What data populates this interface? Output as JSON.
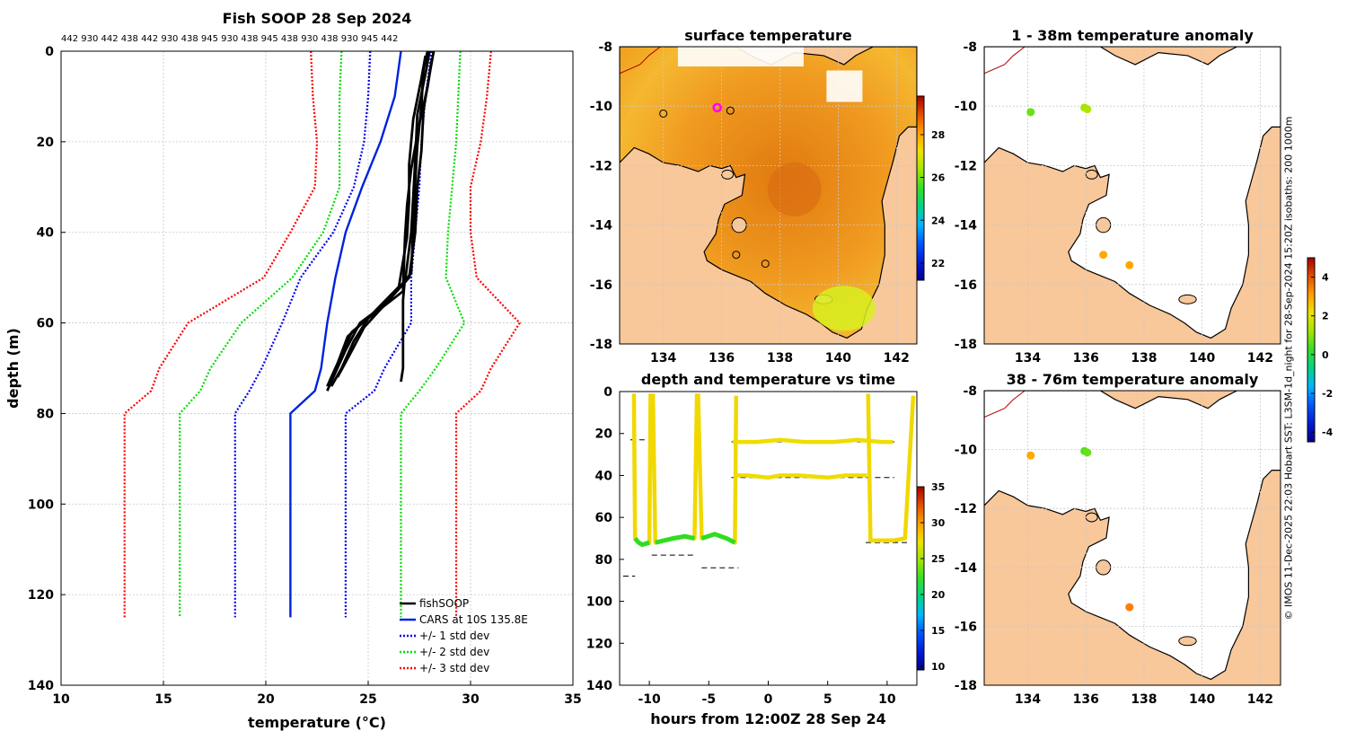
{
  "footer_vertical": "© IMOS 11-Dec-2025 22:03 Hobart SST: L3SM-1d_night for 28-Sep-2024 15:20Z isobaths: 200  1000m",
  "chart_data": [
    {
      "id": "profile",
      "type": "line",
      "title": "Fish SOOP 28 Sep 2024",
      "xlabel": "temperature (°C)",
      "ylabel": "depth (m)",
      "xlim": [
        10,
        35
      ],
      "ylim": [
        0,
        140
      ],
      "y_reversed": true,
      "xticks": [
        10,
        15,
        20,
        25,
        30,
        35
      ],
      "yticks": [
        0,
        20,
        40,
        60,
        80,
        100,
        120,
        140
      ],
      "top_label": "442 930 442 438 442 930 438 945 930 438 945 438 930 438 930 945 442",
      "grid": true,
      "legend_position": "bottom-right",
      "legend": [
        "fishSOOP",
        "CARS at 10S 135.8E",
        "+/- 1 std dev",
        "+/- 2 std dev",
        "+/- 3 std dev"
      ],
      "cars_mean": {
        "depth": [
          0,
          10,
          20,
          30,
          40,
          50,
          60,
          70,
          75,
          80,
          90,
          100,
          110,
          120,
          125
        ],
        "temp": [
          26.6,
          26.3,
          25.6,
          24.7,
          23.9,
          23.4,
          23.0,
          22.7,
          22.4,
          21.2,
          21.2,
          21.2,
          21.2,
          21.2,
          21.2
        ]
      },
      "std_dev_1": {
        "lower": [
          25.1,
          25.0,
          24.8,
          24.3,
          23.3,
          21.7,
          20.8,
          19.8,
          19.2,
          18.5,
          18.5,
          18.5,
          18.5,
          18.5,
          18.5
        ],
        "upper": [
          28.1,
          27.8,
          27.6,
          27.5,
          27.3,
          27.1,
          27.1,
          25.8,
          25.3,
          23.9,
          23.9,
          23.9,
          23.9,
          23.9,
          23.9
        ]
      },
      "std_dev_2": {
        "lower": [
          23.7,
          23.6,
          23.6,
          23.6,
          22.8,
          21.3,
          18.8,
          17.3,
          16.8,
          15.8,
          15.8,
          15.8,
          15.8,
          15.8,
          15.8
        ],
        "upper": [
          29.5,
          29.4,
          29.3,
          29.1,
          28.9,
          28.8,
          29.7,
          28.3,
          27.5,
          26.6,
          26.6,
          26.6,
          26.6,
          26.6,
          26.6
        ]
      },
      "std_dev_3": {
        "lower": [
          22.2,
          22.3,
          22.5,
          22.4,
          21.2,
          19.9,
          16.2,
          14.8,
          14.4,
          13.1,
          13.1,
          13.1,
          13.1,
          13.1,
          13.1
        ],
        "upper": [
          31.0,
          30.8,
          30.5,
          30.0,
          30.0,
          30.3,
          32.4,
          31.0,
          30.5,
          29.3,
          29.3,
          29.3,
          29.3,
          29.3,
          29.3
        ]
      },
      "fishsoop_casts": [
        {
          "depth": [
            0,
            5,
            13,
            22,
            30,
            40,
            50,
            56,
            60,
            66,
            72,
            75
          ],
          "temp": [
            28.2,
            28.0,
            27.7,
            27.6,
            27.4,
            27.3,
            27.0,
            25.8,
            24.6,
            23.9,
            23.3,
            23.0
          ]
        },
        {
          "depth": [
            0,
            5,
            14,
            24,
            32,
            40,
            51,
            57,
            62,
            68,
            73
          ],
          "temp": [
            28.0,
            27.8,
            27.4,
            27.3,
            27.2,
            27.1,
            26.8,
            25.5,
            24.2,
            23.6,
            23.1
          ]
        },
        {
          "depth": [
            1,
            6,
            15,
            25,
            33,
            41,
            52,
            58,
            63,
            69,
            74
          ],
          "temp": [
            27.8,
            27.6,
            27.2,
            27.0,
            27.0,
            26.9,
            26.5,
            25.2,
            24.0,
            23.5,
            23.0
          ]
        },
        {
          "depth": [
            2,
            8,
            16,
            26,
            34,
            41,
            53,
            59,
            64,
            70,
            74
          ],
          "temp": [
            28.1,
            27.9,
            27.5,
            27.1,
            26.9,
            26.8,
            26.7,
            25.0,
            24.3,
            23.7,
            23.2
          ]
        },
        {
          "depth": [
            0,
            4,
            12,
            21,
            29,
            39,
            49,
            55,
            61,
            67,
            72
          ],
          "temp": [
            27.9,
            27.7,
            27.6,
            27.4,
            27.3,
            27.2,
            27.1,
            26.0,
            24.8,
            24.1,
            23.5
          ]
        },
        {
          "depth": [
            50,
            55,
            62,
            70,
            73
          ],
          "temp": [
            26.8,
            26.7,
            26.7,
            26.7,
            26.6
          ]
        }
      ]
    },
    {
      "id": "sst",
      "type": "heatmap",
      "title": "surface temperature",
      "xlim": [
        132.5,
        142.7
      ],
      "ylim": [
        -18,
        -8
      ],
      "xticks": [
        134,
        136,
        138,
        140,
        142
      ],
      "yticks": [
        -8,
        -10,
        -12,
        -14,
        -16,
        -18
      ],
      "colorbar_ticks": [
        22,
        24,
        26,
        28
      ],
      "colorbar_range": [
        21.2,
        29.8
      ],
      "markers": [
        {
          "lon": 134.0,
          "lat": -10.25
        },
        {
          "lon": 136.3,
          "lat": -10.15
        },
        {
          "lon": 136.5,
          "lat": -15.0
        },
        {
          "lon": 137.5,
          "lat": -15.3
        }
      ],
      "highlight": {
        "lon": 135.85,
        "lat": -10.05
      }
    },
    {
      "id": "depth_time",
      "type": "scatter",
      "title": "depth and temperature vs time",
      "xlabel": "hours from 12:00Z 28 Sep 24",
      "xlim": [
        -12.5,
        12.5
      ],
      "ylim": [
        0,
        140
      ],
      "y_reversed": true,
      "xticks": [
        -10,
        -5,
        0,
        5,
        10
      ],
      "yticks": [
        0,
        20,
        40,
        60,
        80,
        100,
        120,
        140
      ],
      "colorbar_ticks": [
        10,
        15,
        20,
        25,
        30,
        35
      ],
      "colorbar_range": [
        9.5,
        35
      ],
      "casts": [
        {
          "t": [
            -11.3,
            -11.2,
            -10.9,
            -10.6,
            -10.0,
            -9.9
          ],
          "depth": [
            1,
            70,
            72,
            73,
            72,
            1
          ]
        },
        {
          "t": [
            -9.7,
            -9.5,
            -8.0,
            -7.0,
            -6.2,
            -6.0
          ],
          "depth": [
            1,
            72,
            70,
            69,
            70,
            1
          ]
        },
        {
          "t": [
            -5.9,
            -5.6,
            -4.5,
            -3.5,
            -2.8,
            -2.7
          ],
          "depth": [
            1,
            70,
            68,
            70,
            72,
            2
          ]
        },
        {
          "t": [
            -2.7,
            -1.8,
            0.0,
            1.0,
            2.5,
            5.0,
            6.5,
            8.3
          ],
          "depth": [
            40,
            40,
            41,
            40,
            40,
            41,
            40,
            40
          ]
        },
        {
          "t": [
            -3.0,
            -1.0,
            1.0,
            3.0,
            5.5,
            7.5,
            9.5,
            10.5
          ],
          "depth": [
            24,
            24,
            23,
            24,
            24,
            23,
            24,
            24
          ]
        },
        {
          "t": [
            8.4,
            8.6,
            9.5,
            10.5,
            11.5,
            12.2
          ],
          "depth": [
            1,
            71,
            71,
            71,
            70,
            2
          ]
        }
      ],
      "bottom_ticks": [
        {
          "t0": -12.2,
          "t1": -11.2,
          "depth": 88
        },
        {
          "t0": -9.8,
          "t1": -6.3,
          "depth": 78
        },
        {
          "t0": -5.6,
          "t1": -2.5,
          "depth": 84
        },
        {
          "t0": -11.6,
          "t1": -10.4,
          "depth": 23
        },
        {
          "t0": -3.1,
          "t1": 10.6,
          "depth": 24
        },
        {
          "t0": -3.1,
          "t1": 10.6,
          "depth": 41
        },
        {
          "t0": 8.2,
          "t1": 11.9,
          "depth": 72
        }
      ]
    },
    {
      "id": "anom1",
      "type": "scatter",
      "title": "1 - 38m temperature anomaly",
      "xlim": [
        132.5,
        142.7
      ],
      "ylim": [
        -18,
        -8
      ],
      "xticks": [
        134,
        136,
        138,
        140,
        142
      ],
      "yticks": [
        -8,
        -10,
        -12,
        -14,
        -16,
        -18
      ],
      "points": [
        {
          "lon": 134.1,
          "lat": -10.2,
          "value": 0.7
        },
        {
          "lon": 135.95,
          "lat": -10.05,
          "value": 1.2
        },
        {
          "lon": 136.05,
          "lat": -10.1,
          "value": 1.4
        },
        {
          "lon": 136.6,
          "lat": -15.0,
          "value": 3.0
        },
        {
          "lon": 137.5,
          "lat": -15.35,
          "value": 3.0
        }
      ]
    },
    {
      "id": "anom2",
      "type": "scatter",
      "title": "38 - 76m temperature anomaly",
      "xlim": [
        132.5,
        142.7
      ],
      "ylim": [
        -18,
        -8
      ],
      "xticks": [
        134,
        136,
        138,
        140,
        142
      ],
      "yticks": [
        -8,
        -10,
        -12,
        -14,
        -16,
        -18
      ],
      "colorbar_ticks": [
        -4,
        -2,
        0,
        2,
        4
      ],
      "colorbar_range": [
        -4.5,
        5.0
      ],
      "points": [
        {
          "lon": 134.1,
          "lat": -10.2,
          "value": 3.0
        },
        {
          "lon": 135.95,
          "lat": -10.05,
          "value": 0.5
        },
        {
          "lon": 136.05,
          "lat": -10.1,
          "value": 0.7
        },
        {
          "lon": 137.5,
          "lat": -15.35,
          "value": 3.5
        }
      ]
    }
  ]
}
